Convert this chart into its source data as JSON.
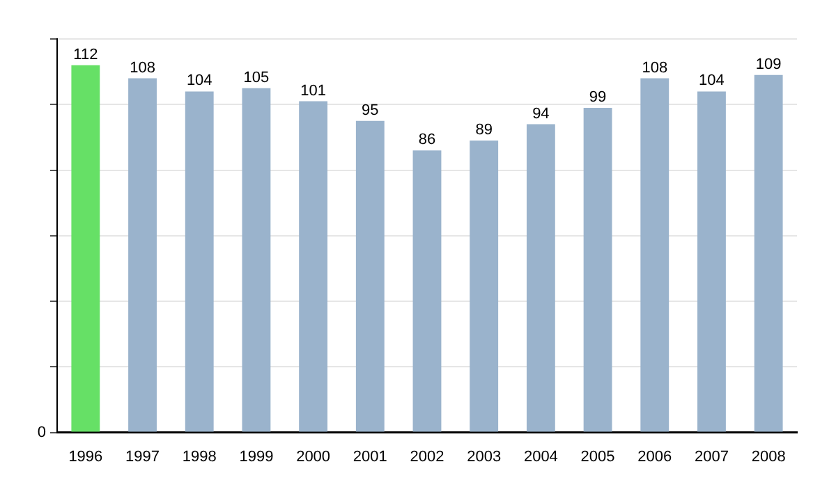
{
  "chart_data": {
    "type": "bar",
    "categories": [
      "1996",
      "1997",
      "1998",
      "1999",
      "2000",
      "2001",
      "2002",
      "2003",
      "2004",
      "2005",
      "2006",
      "2007",
      "2008"
    ],
    "values": [
      112,
      108,
      104,
      105,
      101,
      95,
      86,
      89,
      94,
      99,
      108,
      104,
      109
    ],
    "colors": [
      "#66e066",
      "#9ab3cc",
      "#9ab3cc",
      "#9ab3cc",
      "#9ab3cc",
      "#9ab3cc",
      "#9ab3cc",
      "#9ab3cc",
      "#9ab3cc",
      "#9ab3cc",
      "#9ab3cc",
      "#9ab3cc",
      "#9ab3cc"
    ],
    "annotations": [
      "0"
    ],
    "grid": "y",
    "data_labels": true,
    "legend": false
  }
}
